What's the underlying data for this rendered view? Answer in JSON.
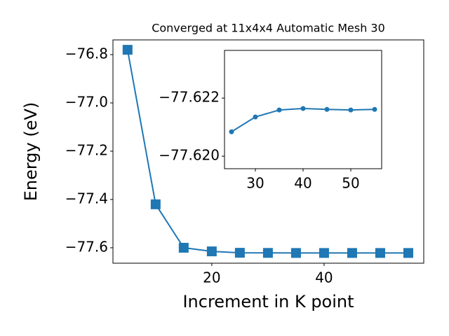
{
  "chart_data": [
    {
      "type": "line",
      "title": "Converged at 11x4x4 Automatic Mesh 30",
      "x_label": "Increment in K point",
      "y_label": "Energy (eV)",
      "x": [
        5,
        10,
        15,
        20,
        25,
        30,
        35,
        40,
        45,
        50,
        55
      ],
      "series": [
        {
          "color": "#1f77b4",
          "marker": "square",
          "values": [
            -76.78,
            -77.42,
            -77.6,
            -77.615,
            -77.62084,
            -77.62135,
            -77.62159,
            -77.62164,
            -77.62161,
            -77.62159,
            -77.62161
          ]
        }
      ],
      "xlim": [
        2.4,
        57.75
      ],
      "xticks": [
        20,
        40
      ],
      "ylim": [
        -77.664,
        -76.739
      ],
      "yticks": [
        {
          "value": -77.6,
          "label": "−77.6"
        },
        {
          "value": -77.4,
          "label": "−77.4"
        },
        {
          "value": -77.2,
          "label": "−77.2"
        },
        {
          "value": -77.0,
          "label": "−77.0"
        },
        {
          "value": -76.8,
          "label": "−76.8"
        }
      ]
    },
    {
      "type": "line",
      "x": [
        25,
        30,
        35,
        40,
        45,
        50,
        55
      ],
      "series": [
        {
          "color": "#1f77b4",
          "marker": "circle",
          "values": [
            -77.62084,
            -77.62135,
            -77.62159,
            -77.62164,
            -77.62161,
            -77.62159,
            -77.62161
          ]
        }
      ],
      "xlim": [
        23.53,
        56.47
      ],
      "xticks": [
        30,
        40,
        50
      ],
      "ylim": [
        -77.61957,
        -77.62364
      ],
      "yticks": [
        {
          "value": -77.62,
          "label": "−77.620"
        },
        {
          "value": -77.622,
          "label": "−77.622"
        }
      ]
    }
  ]
}
